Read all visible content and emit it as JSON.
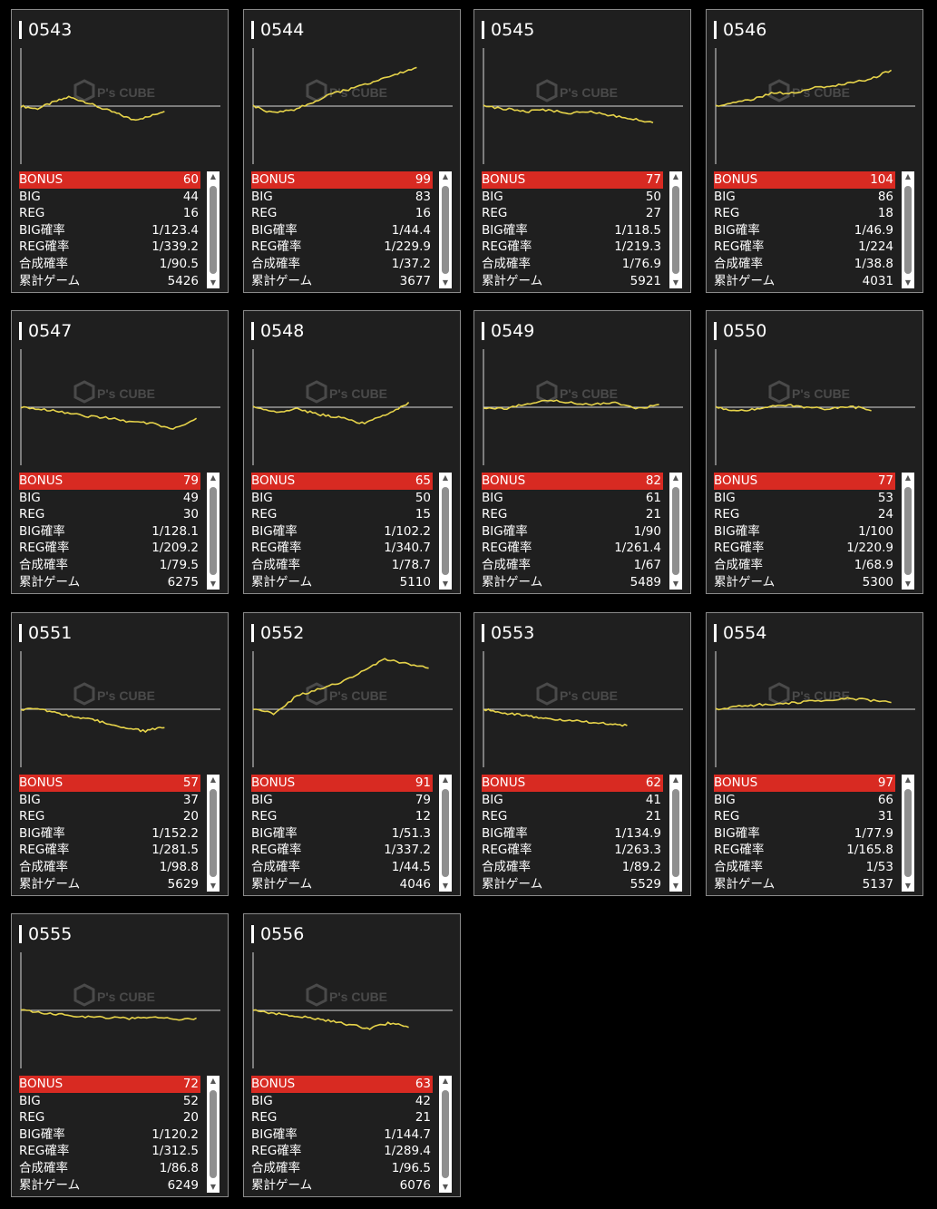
{
  "stat_labels": {
    "bonus": "BONUS",
    "big": "BIG",
    "reg": "REG",
    "big_rate": "BIG確率",
    "reg_rate": "REG確率",
    "total_rate": "合成確率",
    "games": "累計ゲーム"
  },
  "icons": {
    "scroll_up": "▲",
    "scroll_down": "▼"
  },
  "colors": {
    "line": "#e6d34a",
    "bonus_bar": "#d82a22",
    "card_bg": "#1f1f1f"
  },
  "watermark": {
    "logo_text": "P's CUBE"
  },
  "machines": [
    {
      "id": "0543",
      "bonus": "60",
      "big": "44",
      "reg": "16",
      "big_rate": "1/123.4",
      "reg_rate": "1/339.2",
      "total_rate": "1/90.5",
      "games": "5426"
    },
    {
      "id": "0544",
      "bonus": "99",
      "big": "83",
      "reg": "16",
      "big_rate": "1/44.4",
      "reg_rate": "1/229.9",
      "total_rate": "1/37.2",
      "games": "3677"
    },
    {
      "id": "0545",
      "bonus": "77",
      "big": "50",
      "reg": "27",
      "big_rate": "1/118.5",
      "reg_rate": "1/219.3",
      "total_rate": "1/76.9",
      "games": "5921"
    },
    {
      "id": "0546",
      "bonus": "104",
      "big": "86",
      "reg": "18",
      "big_rate": "1/46.9",
      "reg_rate": "1/224",
      "total_rate": "1/38.8",
      "games": "4031"
    },
    {
      "id": "0547",
      "bonus": "79",
      "big": "49",
      "reg": "30",
      "big_rate": "1/128.1",
      "reg_rate": "1/209.2",
      "total_rate": "1/79.5",
      "games": "6275"
    },
    {
      "id": "0548",
      "bonus": "65",
      "big": "50",
      "reg": "15",
      "big_rate": "1/102.2",
      "reg_rate": "1/340.7",
      "total_rate": "1/78.7",
      "games": "5110"
    },
    {
      "id": "0549",
      "bonus": "82",
      "big": "61",
      "reg": "21",
      "big_rate": "1/90",
      "reg_rate": "1/261.4",
      "total_rate": "1/67",
      "games": "5489"
    },
    {
      "id": "0550",
      "bonus": "77",
      "big": "53",
      "reg": "24",
      "big_rate": "1/100",
      "reg_rate": "1/220.9",
      "total_rate": "1/68.9",
      "games": "5300"
    },
    {
      "id": "0551",
      "bonus": "57",
      "big": "37",
      "reg": "20",
      "big_rate": "1/152.2",
      "reg_rate": "1/281.5",
      "total_rate": "1/98.8",
      "games": "5629"
    },
    {
      "id": "0552",
      "bonus": "91",
      "big": "79",
      "reg": "12",
      "big_rate": "1/51.3",
      "reg_rate": "1/337.2",
      "total_rate": "1/44.5",
      "games": "4046"
    },
    {
      "id": "0553",
      "bonus": "62",
      "big": "41",
      "reg": "21",
      "big_rate": "1/134.9",
      "reg_rate": "1/263.3",
      "total_rate": "1/89.2",
      "games": "5529"
    },
    {
      "id": "0554",
      "bonus": "97",
      "big": "66",
      "reg": "31",
      "big_rate": "1/77.9",
      "reg_rate": "1/165.8",
      "total_rate": "1/53",
      "games": "5137"
    },
    {
      "id": "0555",
      "bonus": "72",
      "big": "52",
      "reg": "20",
      "big_rate": "1/120.2",
      "reg_rate": "1/312.5",
      "total_rate": "1/86.8",
      "games": "6249"
    },
    {
      "id": "0556",
      "bonus": "63",
      "big": "42",
      "reg": "21",
      "big_rate": "1/144.7",
      "reg_rate": "1/289.4",
      "total_rate": "1/96.5",
      "games": "6076"
    }
  ]
}
